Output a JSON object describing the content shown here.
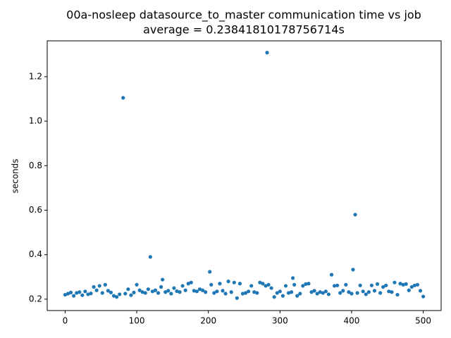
{
  "chart_data": {
    "type": "scatter",
    "title": "00a-nosleep datasource_to_master communication time vs job",
    "subtitle": "average = 0.23841810178756714s",
    "y_label": "seconds",
    "color": "#1f77b4",
    "grid": false,
    "xlim": [
      -25,
      525
    ],
    "ylim": [
      0.149,
      1.361
    ],
    "xticks": [
      0,
      100,
      200,
      300,
      400,
      500
    ],
    "yticks": [
      0.2,
      0.4,
      0.6,
      0.8,
      {
        "value": 1.0,
        "label": "1.0"
      },
      1.2
    ],
    "x": [
      0,
      4,
      8,
      12,
      16,
      20,
      24,
      28,
      32,
      36,
      40,
      44,
      48,
      52,
      56,
      60,
      64,
      68,
      72,
      76,
      81,
      84,
      88,
      92,
      96,
      100,
      104,
      108,
      112,
      116,
      119,
      122,
      126,
      130,
      134,
      136,
      140,
      144,
      148,
      152,
      156,
      160,
      164,
      168,
      172,
      176,
      180,
      184,
      188,
      192,
      196,
      202,
      204,
      208,
      212,
      216,
      220,
      224,
      228,
      232,
      236,
      240,
      244,
      248,
      252,
      256,
      260,
      264,
      268,
      272,
      276,
      280,
      282,
      284,
      288,
      292,
      296,
      300,
      304,
      308,
      312,
      316,
      318,
      320,
      324,
      328,
      332,
      336,
      340,
      344,
      348,
      352,
      356,
      360,
      364,
      368,
      372,
      376,
      380,
      384,
      388,
      392,
      396,
      400,
      402,
      405,
      408,
      412,
      416,
      420,
      424,
      428,
      432,
      436,
      440,
      444,
      448,
      452,
      456,
      460,
      464,
      468,
      472,
      476,
      480,
      484,
      488,
      492,
      496,
      500
    ],
    "values": [
      0.22,
      0.225,
      0.23,
      0.215,
      0.228,
      0.232,
      0.218,
      0.235,
      0.222,
      0.226,
      0.255,
      0.24,
      0.26,
      0.228,
      0.265,
      0.238,
      0.23,
      0.215,
      0.21,
      0.222,
      1.105,
      0.225,
      0.245,
      0.218,
      0.23,
      0.265,
      0.24,
      0.232,
      0.228,
      0.245,
      0.39,
      0.235,
      0.24,
      0.228,
      0.255,
      0.288,
      0.232,
      0.238,
      0.225,
      0.25,
      0.236,
      0.232,
      0.26,
      0.24,
      0.27,
      0.275,
      0.238,
      0.235,
      0.245,
      0.24,
      0.232,
      0.323,
      0.265,
      0.228,
      0.235,
      0.27,
      0.238,
      0.225,
      0.28,
      0.232,
      0.275,
      0.205,
      0.27,
      0.225,
      0.228,
      0.235,
      0.26,
      0.232,
      0.228,
      0.275,
      0.27,
      0.26,
      1.308,
      0.265,
      0.25,
      0.21,
      0.228,
      0.235,
      0.215,
      0.26,
      0.228,
      0.232,
      0.295,
      0.265,
      0.215,
      0.225,
      0.26,
      0.268,
      0.27,
      0.232,
      0.238,
      0.225,
      0.232,
      0.228,
      0.235,
      0.222,
      0.31,
      0.26,
      0.262,
      0.228,
      0.238,
      0.265,
      0.232,
      0.225,
      0.333,
      0.58,
      0.228,
      0.262,
      0.235,
      0.222,
      0.232,
      0.262,
      0.238,
      0.268,
      0.228,
      0.255,
      0.262,
      0.235,
      0.232,
      0.275,
      0.22,
      0.27,
      0.265,
      0.268,
      0.24,
      0.255,
      0.262,
      0.265,
      0.238,
      0.212
    ]
  }
}
